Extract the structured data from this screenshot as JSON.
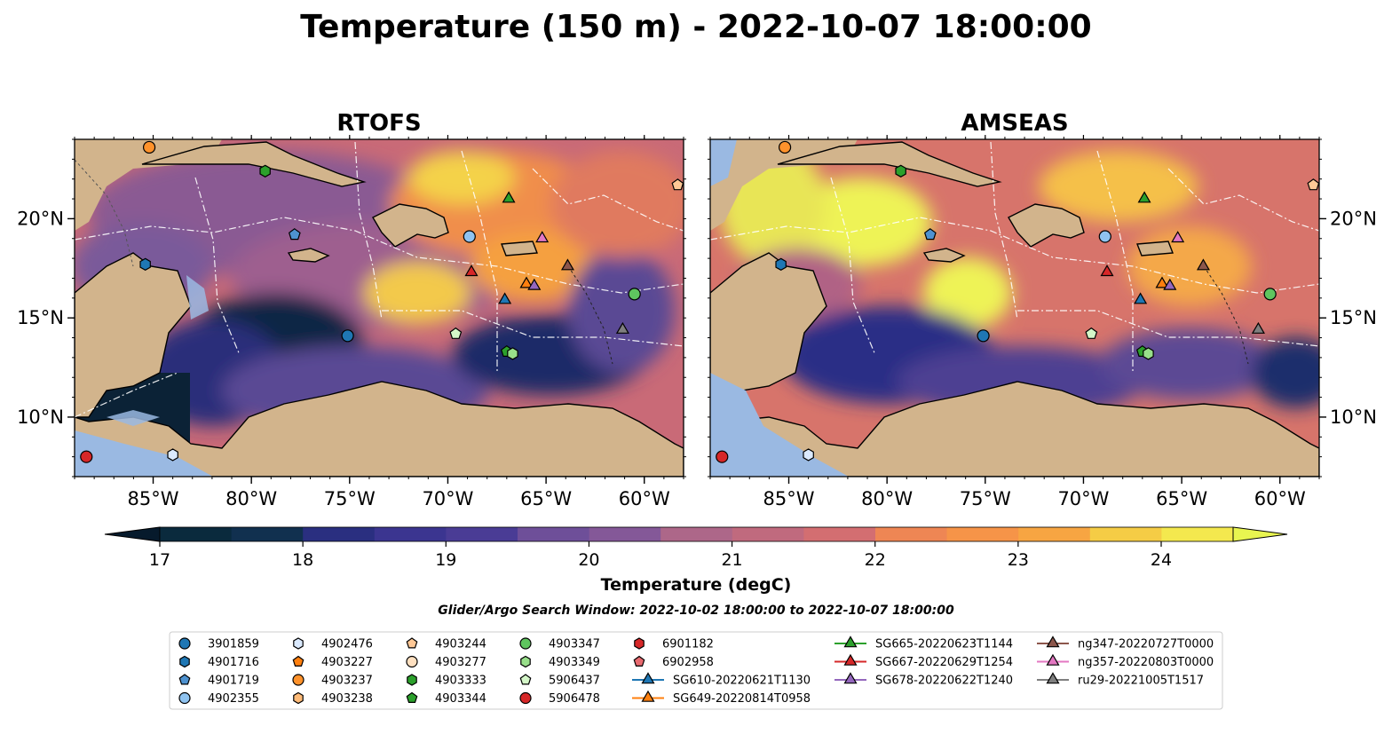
{
  "figure": {
    "title": "Temperature (150 m) - 2022-10-07 18:00:00",
    "search_window": "Glider/Argo Search Window: 2022-10-02 18:00:00 to 2022-10-07 18:00:00"
  },
  "maps": {
    "panels": [
      {
        "title": "RTOFS",
        "model": "rtofs"
      },
      {
        "title": "AMSEAS",
        "model": "amseas"
      }
    ],
    "lon_range": [
      -89,
      -58
    ],
    "lat_range": [
      7,
      24
    ],
    "x_ticks": [
      {
        "value": -85,
        "label": "85°W"
      },
      {
        "value": -80,
        "label": "80°W"
      },
      {
        "value": -75,
        "label": "75°W"
      },
      {
        "value": -70,
        "label": "70°W"
      },
      {
        "value": -65,
        "label": "65°W"
      },
      {
        "value": -60,
        "label": "60°W"
      }
    ],
    "y_ticks": [
      {
        "value": 20,
        "label": "20°N"
      },
      {
        "value": 15,
        "label": "15°N"
      },
      {
        "value": 10,
        "label": "10°N"
      }
    ],
    "colors": {
      "land": "#d2b48c",
      "shelf_water": "#9ab9e2",
      "eez": "#ffffff",
      "border": "#000000"
    }
  },
  "colorbar": {
    "label": "Temperature (degC)",
    "min": 16.75,
    "max": 24.5,
    "step": 0.5,
    "ticks": [
      "17",
      "18",
      "19",
      "20",
      "21",
      "22",
      "23",
      "24"
    ],
    "tick_values": [
      17,
      18,
      19,
      20,
      21,
      22,
      23,
      24
    ],
    "low_color": "#061a2c",
    "high_color": "#e8f550"
  },
  "legend": {
    "entries": [
      {
        "label": "3901859",
        "marker": "circle",
        "color": "#1f77b4"
      },
      {
        "label": "4901716",
        "marker": "hexagon",
        "color": "#1f77b4"
      },
      {
        "label": "4901719",
        "marker": "pentagon",
        "color": "#4e92d0"
      },
      {
        "label": "4902355",
        "marker": "circle",
        "color": "#8fc3f0"
      },
      {
        "label": "4902476",
        "marker": "hexagon",
        "color": "#dbeaff"
      },
      {
        "label": "4903227",
        "marker": "pentagon",
        "color": "#ff7f0e"
      },
      {
        "label": "4903237",
        "marker": "circle",
        "color": "#ff922b"
      },
      {
        "label": "4903238",
        "marker": "hexagon",
        "color": "#ffbb78"
      },
      {
        "label": "4903244",
        "marker": "pentagon",
        "color": "#ffc896"
      },
      {
        "label": "4903277",
        "marker": "circle",
        "color": "#ffe0c0"
      },
      {
        "label": "4903333",
        "marker": "hexagon",
        "color": "#2ca02c"
      },
      {
        "label": "4903344",
        "marker": "pentagon",
        "color": "#2ca02c"
      },
      {
        "label": "4903347",
        "marker": "circle",
        "color": "#5fc55f"
      },
      {
        "label": "4903349",
        "marker": "hexagon",
        "color": "#98df8a"
      },
      {
        "label": "5906437",
        "marker": "pentagon",
        "color": "#d4f7c8"
      },
      {
        "label": "5906478",
        "marker": "circle",
        "color": "#d62728"
      },
      {
        "label": "6901182",
        "marker": "hexagon",
        "color": "#d62728"
      },
      {
        "label": "6902958",
        "marker": "pentagon",
        "color": "#e86a6f"
      },
      {
        "label": "SG610-20220621T1130",
        "marker": "triangle-line",
        "color": "#1f77b4"
      },
      {
        "label": "SG649-20220814T0958",
        "marker": "triangle-line",
        "color": "#ff7f0e"
      },
      {
        "label": "SG665-20220623T1144",
        "marker": "triangle-line",
        "color": "#2ca02c"
      },
      {
        "label": "SG667-20220629T1254",
        "marker": "triangle-line",
        "color": "#d62728"
      },
      {
        "label": "SG678-20220622T1240",
        "marker": "triangle-line",
        "color": "#9467bd"
      },
      {
        "label": "ng347-20220727T0000",
        "marker": "triangle-line",
        "color": "#8c564b"
      },
      {
        "label": "ng357-20220803T0000",
        "marker": "triangle-line",
        "color": "#e377c2"
      },
      {
        "label": "ru29-20221005T1517",
        "marker": "triangle-line",
        "color": "#7f7f7f"
      }
    ]
  },
  "platforms": [
    {
      "id": "3901859",
      "lon": -75.1,
      "lat": 14.1,
      "marker": "circle",
      "color": "#1f77b4"
    },
    {
      "id": "4901716",
      "lon": -85.4,
      "lat": 17.7,
      "marker": "hexagon",
      "color": "#1f77b4"
    },
    {
      "id": "4901719",
      "lon": -77.8,
      "lat": 19.2,
      "marker": "pentagon",
      "color": "#4e92d0"
    },
    {
      "id": "4902355",
      "lon": -68.9,
      "lat": 19.1,
      "marker": "circle",
      "color": "#8fc3f0"
    },
    {
      "id": "4902476",
      "lon": -84.0,
      "lat": 8.1,
      "marker": "hexagon",
      "color": "#dbeaff"
    },
    {
      "id": "4903237",
      "lon": -85.2,
      "lat": 23.6,
      "marker": "circle",
      "color": "#ff922b"
    },
    {
      "id": "4903244",
      "lon": -58.3,
      "lat": 21.7,
      "marker": "pentagon",
      "color": "#ffc896"
    },
    {
      "id": "4903333",
      "lon": -79.3,
      "lat": 22.4,
      "marker": "hexagon",
      "color": "#2ca02c"
    },
    {
      "id": "4903344",
      "lon": -67.0,
      "lat": 13.3,
      "marker": "pentagon",
      "color": "#2ca02c"
    },
    {
      "id": "4903347",
      "lon": -60.5,
      "lat": 16.2,
      "marker": "circle",
      "color": "#5fc55f"
    },
    {
      "id": "4903349",
      "lon": -66.7,
      "lat": 13.2,
      "marker": "hexagon",
      "color": "#98df8a"
    },
    {
      "id": "5906437",
      "lon": -69.6,
      "lat": 14.2,
      "marker": "pentagon",
      "color": "#d4f7c8"
    },
    {
      "id": "5906478",
      "lon": -88.4,
      "lat": 8.0,
      "marker": "circle",
      "color": "#d62728"
    },
    {
      "id": "SG610-20220621T1130",
      "lon": -67.1,
      "lat": 15.9,
      "marker": "triangle",
      "color": "#1f77b4"
    },
    {
      "id": "SG649-20220814T0958",
      "lon": -66.0,
      "lat": 16.7,
      "marker": "triangle",
      "color": "#ff7f0e"
    },
    {
      "id": "SG665-20220623T1144",
      "lon": -66.9,
      "lat": 21.0,
      "marker": "triangle",
      "color": "#2ca02c"
    },
    {
      "id": "SG667-20220629T1254",
      "lon": -68.8,
      "lat": 17.3,
      "marker": "triangle",
      "color": "#d62728"
    },
    {
      "id": "SG678-20220622T1240",
      "lon": -65.6,
      "lat": 16.6,
      "marker": "triangle",
      "color": "#9467bd"
    },
    {
      "id": "ng347-20220727T0000",
      "lon": -63.9,
      "lat": 17.6,
      "marker": "triangle",
      "color": "#8c564b"
    },
    {
      "id": "ng357-20220803T0000",
      "lon": -65.2,
      "lat": 19.0,
      "marker": "triangle",
      "color": "#e377c2"
    },
    {
      "id": "ru29-20221005T1517",
      "lon": -61.1,
      "lat": 14.4,
      "marker": "triangle",
      "color": "#7f7f7f"
    }
  ]
}
